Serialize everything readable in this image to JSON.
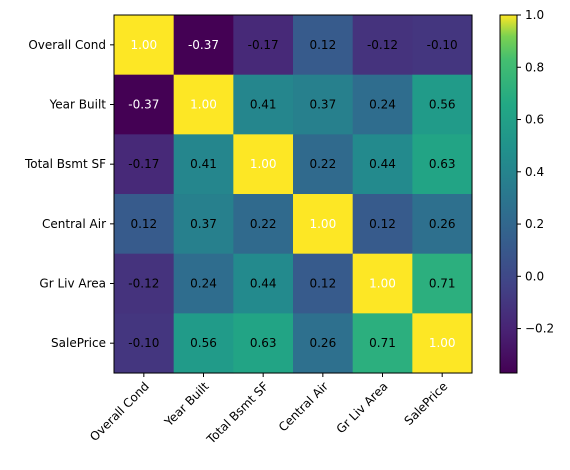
{
  "chart_data": {
    "type": "heatmap",
    "title": "",
    "xlabel": "",
    "ylabel": "",
    "labels": [
      "Overall Cond",
      "Year Built",
      "Total Bsmt SF",
      "Central Air",
      "Gr Liv Area",
      "SalePrice"
    ],
    "matrix": [
      [
        1.0,
        -0.37,
        -0.17,
        0.12,
        -0.12,
        -0.1
      ],
      [
        -0.37,
        1.0,
        0.41,
        0.37,
        0.24,
        0.56
      ],
      [
        -0.17,
        0.41,
        1.0,
        0.22,
        0.44,
        0.63
      ],
      [
        0.12,
        0.37,
        0.22,
        1.0,
        0.12,
        0.26
      ],
      [
        -0.12,
        0.24,
        0.44,
        0.12,
        1.0,
        0.71
      ],
      [
        -0.1,
        0.56,
        0.63,
        0.26,
        0.71,
        1.0
      ]
    ],
    "value_format": "0.00",
    "colormap": "viridis",
    "vmin": -0.37,
    "vmax": 1.0,
    "colorbar": {
      "ticks": [
        -0.2,
        0.0,
        0.2,
        0.4,
        0.6,
        0.8,
        1.0
      ],
      "tick_labels": [
        "−0.2",
        "0.0",
        "0.2",
        "0.4",
        "0.6",
        "0.8",
        "1.0"
      ]
    },
    "annotation_colors": {
      "dark": "#000000",
      "light": "#ffffff"
    }
  }
}
